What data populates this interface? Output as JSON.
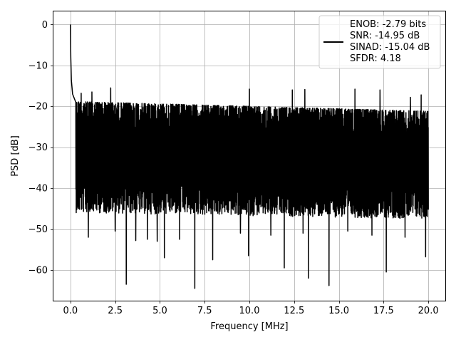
{
  "chart_data": {
    "type": "line",
    "title": "",
    "xlabel": "Frequency [MHz]",
    "ylabel": "PSD [dB]",
    "xlim": [
      -0.95,
      20.95
    ],
    "ylim": [
      -67.5,
      3.2
    ],
    "xticks": [
      0.0,
      2.5,
      5.0,
      7.5,
      10.0,
      12.5,
      15.0,
      17.5,
      20.0
    ],
    "xtick_labels": [
      "0.0",
      "2.5",
      "5.0",
      "7.5",
      "10.0",
      "12.5",
      "15.0",
      "17.5",
      "20.0"
    ],
    "yticks": [
      0,
      -10,
      -20,
      -30,
      -40,
      -50,
      -60
    ],
    "ytick_labels": [
      "0",
      "−10",
      "−20",
      "−30",
      "−40",
      "−50",
      "−60"
    ],
    "grid": true,
    "line_color": "#000000",
    "legend": {
      "placement": "top-right",
      "entries": [
        "ENOB: -2.79 bits",
        "SNR: -14.95 dB",
        "SINAD: -15.04 dB",
        "SFDR: 4.18"
      ]
    },
    "series": [
      {
        "x_start": 0.0,
        "x_end": 20.0,
        "peak": {
          "x": 0.0,
          "y": 0.0
        },
        "dc_decay": [
          [
            0.0,
            0.0
          ],
          [
            0.02,
            -8.0
          ],
          [
            0.05,
            -13.5
          ],
          [
            0.12,
            -17.0
          ],
          [
            0.3,
            -19.0
          ]
        ],
        "upper_envelope": [
          -17.8,
          -20.2
        ],
        "lower_envelope": [
          -42.0,
          -43.5
        ],
        "deep_nulls": [
          {
            "x": 3.12,
            "y": -63.5
          },
          {
            "x": 6.95,
            "y": -64.5
          },
          {
            "x": 13.3,
            "y": -62.0
          },
          {
            "x": 14.45,
            "y": -63.8
          },
          {
            "x": 17.65,
            "y": -60.5
          },
          {
            "x": 5.25,
            "y": -57.0
          },
          {
            "x": 9.95,
            "y": -56.5
          },
          {
            "x": 11.95,
            "y": -59.5
          },
          {
            "x": 7.95,
            "y": -57.5
          },
          {
            "x": 19.85,
            "y": -56.8
          },
          {
            "x": 3.65,
            "y": -52.8
          },
          {
            "x": 4.3,
            "y": -52.5
          },
          {
            "x": 6.1,
            "y": -52.5
          },
          {
            "x": 4.85,
            "y": -53.0
          },
          {
            "x": 1.0,
            "y": -52.0
          },
          {
            "x": 2.5,
            "y": -50.5
          },
          {
            "x": 9.5,
            "y": -51.0
          },
          {
            "x": 11.2,
            "y": -51.5
          },
          {
            "x": 13.0,
            "y": -51.0
          },
          {
            "x": 15.5,
            "y": -50.5
          },
          {
            "x": 16.85,
            "y": -51.5
          },
          {
            "x": 18.7,
            "y": -52.0
          }
        ],
        "tall_peaks": [
          {
            "x": 2.25,
            "y": -15.5
          },
          {
            "x": 10.0,
            "y": -15.8
          },
          {
            "x": 12.4,
            "y": -16.0
          },
          {
            "x": 13.1,
            "y": -15.9
          },
          {
            "x": 15.9,
            "y": -15.8
          },
          {
            "x": 17.3,
            "y": -16.0
          },
          {
            "x": 1.2,
            "y": -16.5
          },
          {
            "x": 0.6,
            "y": -16.8
          },
          {
            "x": 19.0,
            "y": -17.8
          },
          {
            "x": 19.6,
            "y": -17.2
          }
        ]
      }
    ]
  }
}
